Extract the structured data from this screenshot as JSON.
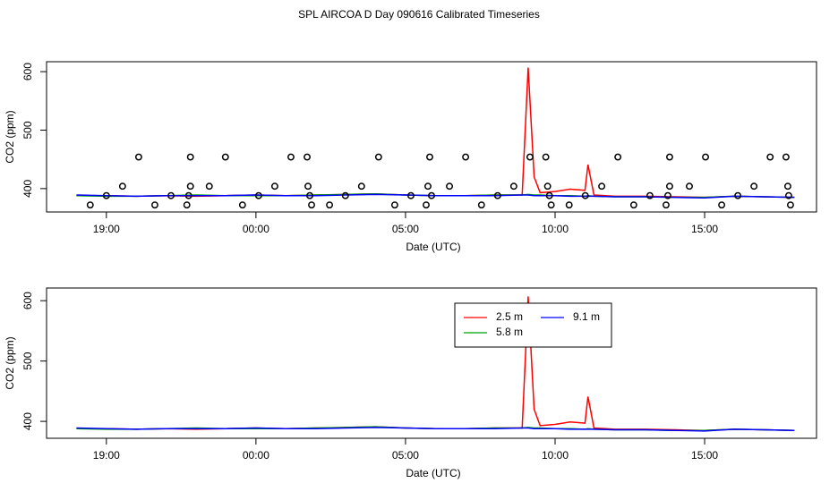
{
  "chart_data": [
    {
      "type": "line",
      "title": "SPL AIRCOA D  Day 090616  Calibrated Timeseries",
      "xlabel": "Date (UTC)",
      "ylabel": "CO2 (ppm)",
      "xlim": [
        17.0,
        42.74
      ],
      "ylim": [
        360,
        617
      ],
      "xticks": [
        {
          "value": 19,
          "label": "19:00"
        },
        {
          "value": 24,
          "label": "00:00"
        },
        {
          "value": 29,
          "label": "05:00"
        },
        {
          "value": 34,
          "label": "10:00"
        },
        {
          "value": 39,
          "label": "15:00"
        }
      ],
      "yticks": [
        400,
        500,
        600
      ],
      "x": [
        18,
        19,
        20,
        21,
        22,
        23,
        24,
        25,
        26,
        27,
        28,
        29,
        30,
        31,
        32,
        32.9,
        33.1,
        33.3,
        33.5,
        34,
        34.5,
        35,
        35.1,
        35.3,
        36,
        37,
        38,
        39,
        40,
        41,
        42
      ],
      "series": [
        {
          "color": "#ff0000",
          "values": [
            388,
            388,
            387,
            388,
            387,
            388,
            389,
            388,
            389,
            390,
            391,
            389,
            388,
            388,
            389,
            389,
            607,
            420,
            393,
            395,
            399,
            397,
            441,
            389,
            387,
            387,
            386,
            385,
            387,
            386,
            385
          ]
        },
        {
          "color": "#00a000",
          "values": [
            388,
            387,
            387,
            388,
            389,
            388,
            388,
            388,
            389,
            390,
            391,
            389,
            388,
            388,
            389,
            389,
            390,
            389,
            389,
            388,
            388,
            387,
            388,
            387,
            386,
            386,
            385,
            385,
            387,
            386,
            385
          ]
        },
        {
          "color": "#0000ff",
          "values": [
            389,
            388,
            387,
            388,
            388,
            388,
            389,
            388,
            388,
            389,
            390,
            389,
            388,
            388,
            388,
            389,
            389,
            388,
            388,
            388,
            387,
            387,
            387,
            387,
            386,
            386,
            385,
            384,
            387,
            386,
            385
          ]
        }
      ],
      "points": {
        "color": "#000000",
        "x": [
          18.46,
          19.0,
          19.54,
          20.08,
          20.62,
          21.16,
          21.69,
          21.75,
          21.81,
          21.81,
          22.44,
          22.98,
          23.55,
          24.09,
          24.63,
          25.17,
          25.71,
          25.74,
          25.8,
          25.86,
          26.46,
          26.99,
          27.53,
          28.1,
          28.64,
          29.18,
          29.69,
          29.75,
          29.81,
          29.87,
          30.47,
          31.01,
          31.54,
          32.08,
          32.62,
          33.16,
          33.69,
          33.75,
          33.81,
          33.87,
          34.47,
          35.01,
          35.56,
          36.1,
          36.63,
          37.17,
          37.71,
          37.77,
          37.83,
          37.83,
          38.49,
          39.03,
          39.57,
          40.11,
          40.65,
          41.19,
          41.72,
          41.78,
          41.81,
          41.87
        ],
        "values": [
          372,
          388,
          404,
          454,
          372,
          388,
          372,
          388,
          404,
          454,
          404,
          454,
          372,
          388,
          404,
          454,
          454,
          404,
          388,
          372,
          372,
          388,
          404,
          454,
          372,
          388,
          372,
          404,
          454,
          388,
          404,
          454,
          372,
          388,
          404,
          454,
          454,
          404,
          388,
          372,
          372,
          388,
          404,
          454,
          372,
          388,
          372,
          388,
          404,
          454,
          404,
          454,
          372,
          388,
          404,
          454,
          454,
          404,
          388,
          372
        ]
      }
    },
    {
      "type": "line",
      "xlabel": "Date (UTC)",
      "ylabel": "CO2 (ppm)",
      "xlim": [
        17.0,
        42.74
      ],
      "ylim": [
        372,
        621
      ],
      "xticks": [
        {
          "value": 19,
          "label": "19:00"
        },
        {
          "value": 24,
          "label": "00:00"
        },
        {
          "value": 29,
          "label": "05:00"
        },
        {
          "value": 34,
          "label": "10:00"
        },
        {
          "value": 39,
          "label": "15:00"
        }
      ],
      "yticks": [
        400,
        500,
        600
      ],
      "legend": "top",
      "x": [
        18,
        19,
        20,
        21,
        22,
        23,
        24,
        25,
        26,
        27,
        28,
        29,
        30,
        31,
        32,
        32.9,
        33.1,
        33.3,
        33.5,
        34,
        34.5,
        35,
        35.1,
        35.3,
        36,
        37,
        38,
        39,
        40,
        41,
        42
      ],
      "series": [
        {
          "name": "2.5 m",
          "color": "#ff0000",
          "values": [
            388,
            388,
            387,
            388,
            387,
            388,
            389,
            388,
            389,
            390,
            391,
            389,
            388,
            388,
            389,
            389,
            607,
            420,
            393,
            395,
            399,
            397,
            441,
            389,
            387,
            387,
            386,
            385,
            387,
            386,
            385
          ]
        },
        {
          "name": "5.8 m",
          "color": "#00a000",
          "values": [
            388,
            387,
            387,
            388,
            389,
            388,
            388,
            388,
            389,
            390,
            391,
            389,
            388,
            388,
            389,
            389,
            390,
            389,
            389,
            388,
            388,
            387,
            388,
            387,
            386,
            386,
            385,
            385,
            387,
            386,
            385
          ]
        },
        {
          "name": "9.1 m",
          "color": "#0000ff",
          "values": [
            389,
            388,
            387,
            388,
            388,
            388,
            389,
            388,
            388,
            389,
            390,
            389,
            388,
            388,
            388,
            389,
            389,
            388,
            388,
            388,
            387,
            387,
            387,
            387,
            386,
            386,
            385,
            384,
            387,
            386,
            385
          ]
        }
      ]
    }
  ]
}
